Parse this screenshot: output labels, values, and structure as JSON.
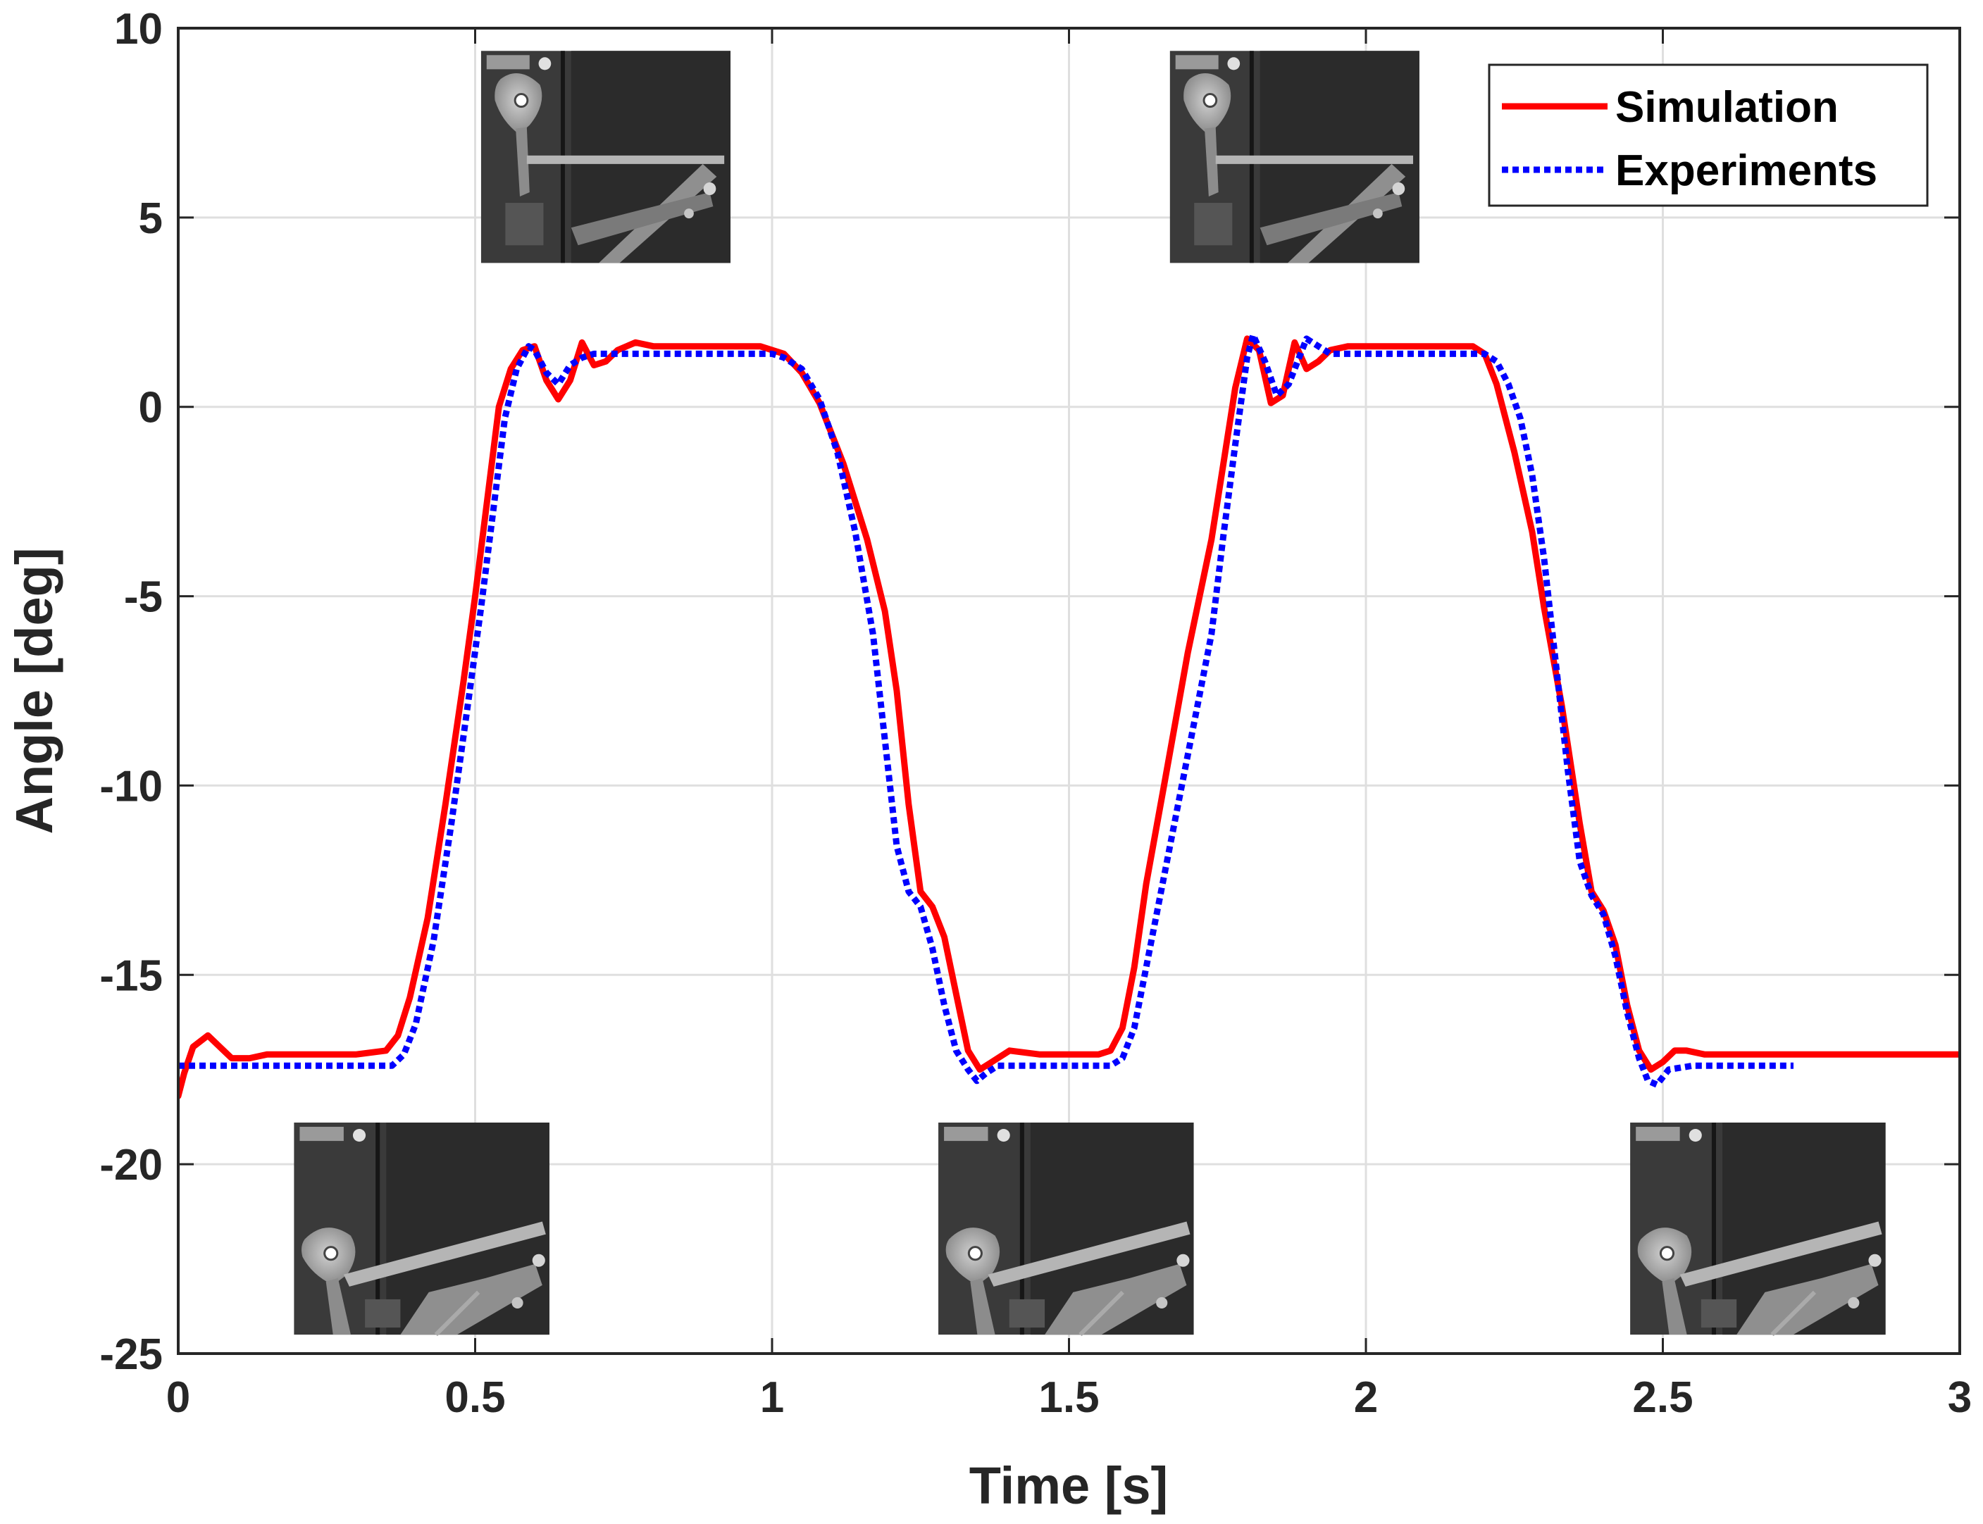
{
  "chart_data": {
    "type": "line",
    "title": "",
    "xlabel": "Time [s]",
    "ylabel": "Angle [deg]",
    "xlim": [
      0,
      3
    ],
    "ylim": [
      -25,
      10
    ],
    "xticks": [
      0,
      0.5,
      1,
      1.5,
      2,
      2.5,
      3
    ],
    "xtick_labels": [
      "0",
      "0.5",
      "1",
      "1.5",
      "2",
      "2.5",
      "3"
    ],
    "yticks": [
      -25,
      -20,
      -15,
      -10,
      -5,
      0,
      5,
      10
    ],
    "ytick_labels": [
      "-25",
      "-20",
      "-15",
      "-10",
      "-5",
      "0",
      "5",
      "10"
    ],
    "grid": true,
    "legend": {
      "position": "top-right"
    },
    "series": [
      {
        "name": "Simulation",
        "color": "#ff0000",
        "style": "solid",
        "x": [
          0,
          0.01,
          0.025,
          0.05,
          0.07,
          0.09,
          0.12,
          0.15,
          0.2,
          0.3,
          0.35,
          0.37,
          0.39,
          0.42,
          0.45,
          0.48,
          0.5,
          0.52,
          0.54,
          0.56,
          0.58,
          0.6,
          0.62,
          0.64,
          0.66,
          0.68,
          0.7,
          0.72,
          0.74,
          0.77,
          0.8,
          0.9,
          0.98,
          1.02,
          1.05,
          1.08,
          1.12,
          1.16,
          1.19,
          1.21,
          1.23,
          1.25,
          1.27,
          1.29,
          1.31,
          1.33,
          1.35,
          1.37,
          1.4,
          1.45,
          1.55,
          1.57,
          1.59,
          1.61,
          1.63,
          1.66,
          1.7,
          1.74,
          1.76,
          1.78,
          1.8,
          1.82,
          1.84,
          1.86,
          1.88,
          1.9,
          1.92,
          1.94,
          1.97,
          2.0,
          2.1,
          2.18,
          2.2,
          2.22,
          2.25,
          2.28,
          2.3,
          2.33,
          2.36,
          2.38,
          2.4,
          2.42,
          2.44,
          2.46,
          2.48,
          2.5,
          2.52,
          2.54,
          2.57,
          2.6,
          2.7,
          2.8,
          3.0
        ],
        "y": [
          -18.2,
          -17.6,
          -16.9,
          -16.6,
          -16.9,
          -17.2,
          -17.2,
          -17.1,
          -17.1,
          -17.1,
          -17.0,
          -16.6,
          -15.6,
          -13.5,
          -10.5,
          -7.3,
          -5.0,
          -2.5,
          0.0,
          1.0,
          1.5,
          1.6,
          0.7,
          0.2,
          0.7,
          1.7,
          1.1,
          1.2,
          1.5,
          1.7,
          1.6,
          1.6,
          1.6,
          1.4,
          0.9,
          0.1,
          -1.5,
          -3.5,
          -5.4,
          -7.5,
          -10.5,
          -12.8,
          -13.2,
          -14.0,
          -15.5,
          -17.0,
          -17.5,
          -17.3,
          -17.0,
          -17.1,
          -17.1,
          -17.0,
          -16.4,
          -14.8,
          -12.6,
          -10.0,
          -6.5,
          -3.5,
          -1.5,
          0.5,
          1.8,
          1.5,
          0.1,
          0.3,
          1.7,
          1.0,
          1.2,
          1.5,
          1.6,
          1.6,
          1.6,
          1.6,
          1.4,
          0.6,
          -1.2,
          -3.3,
          -5.3,
          -7.9,
          -11.0,
          -12.8,
          -13.3,
          -14.2,
          -15.8,
          -17.0,
          -17.5,
          -17.3,
          -17.0,
          -17.0,
          -17.1,
          -17.1,
          -17.1,
          -17.1,
          -17.1
        ]
      },
      {
        "name": "Experiments",
        "color": "#0000ff",
        "style": "dotted",
        "x": [
          0,
          0.2,
          0.36,
          0.38,
          0.4,
          0.43,
          0.46,
          0.49,
          0.51,
          0.53,
          0.55,
          0.57,
          0.59,
          0.6,
          0.62,
          0.64,
          0.66,
          0.68,
          0.7,
          0.75,
          0.9,
          1.0,
          1.02,
          1.05,
          1.08,
          1.11,
          1.14,
          1.17,
          1.19,
          1.21,
          1.23,
          1.25,
          1.27,
          1.29,
          1.31,
          1.33,
          1.345,
          1.36,
          1.38,
          1.45,
          1.57,
          1.59,
          1.61,
          1.63,
          1.66,
          1.7,
          1.74,
          1.76,
          1.78,
          1.8,
          1.81,
          1.83,
          1.85,
          1.87,
          1.9,
          1.92,
          1.94,
          1.97,
          2.0,
          2.2,
          2.22,
          2.24,
          2.26,
          2.28,
          2.3,
          2.32,
          2.34,
          2.36,
          2.38,
          2.4,
          2.42,
          2.44,
          2.46,
          2.475,
          2.49,
          2.51,
          2.55,
          2.72
        ],
        "y": [
          -17.4,
          -17.4,
          -17.4,
          -17.1,
          -16.3,
          -14.1,
          -11.0,
          -7.6,
          -5.3,
          -2.8,
          -0.3,
          1.0,
          1.6,
          1.5,
          0.9,
          0.6,
          1.1,
          1.3,
          1.4,
          1.4,
          1.4,
          1.4,
          1.3,
          1.0,
          0.2,
          -1.2,
          -3.3,
          -6.0,
          -8.8,
          -11.6,
          -12.8,
          -13.2,
          -14.3,
          -15.8,
          -17.0,
          -17.5,
          -17.8,
          -17.6,
          -17.4,
          -17.4,
          -17.4,
          -17.2,
          -16.4,
          -14.8,
          -12.4,
          -9.2,
          -6.0,
          -3.4,
          -1.0,
          1.3,
          1.9,
          1.2,
          0.3,
          0.6,
          1.8,
          1.6,
          1.4,
          1.4,
          1.4,
          1.4,
          1.2,
          0.6,
          -0.3,
          -1.8,
          -4.0,
          -6.8,
          -9.6,
          -12.0,
          -12.9,
          -13.4,
          -14.5,
          -16.0,
          -17.2,
          -17.8,
          -17.9,
          -17.5,
          -17.4,
          -17.4
        ]
      }
    ],
    "insets": [
      {
        "name": "inset-top-1",
        "pose": "raised",
        "x_start": 0.51,
        "x_end": 0.93,
        "y_top": 9.4,
        "y_bottom": 3.8
      },
      {
        "name": "inset-top-2",
        "pose": "raised",
        "x_start": 1.67,
        "x_end": 2.09,
        "y_top": 9.4,
        "y_bottom": 3.8
      },
      {
        "name": "inset-bottom-1",
        "pose": "lowered",
        "x_start": 0.195,
        "x_end": 0.625,
        "y_top": -18.9,
        "y_bottom": -24.5
      },
      {
        "name": "inset-bottom-2",
        "pose": "lowered",
        "x_start": 1.28,
        "x_end": 1.71,
        "y_top": -18.9,
        "y_bottom": -24.5
      },
      {
        "name": "inset-bottom-3",
        "pose": "lowered",
        "x_start": 2.445,
        "x_end": 2.875,
        "y_top": -18.9,
        "y_bottom": -24.5
      }
    ]
  }
}
